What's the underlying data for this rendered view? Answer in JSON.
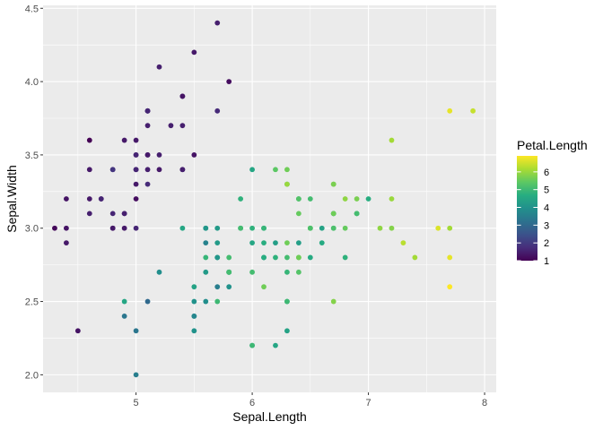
{
  "chart_data": {
    "type": "scatter",
    "xlabel": "Sepal.Length",
    "ylabel": "Sepal.Width",
    "xlim": [
      4.2,
      8.1
    ],
    "ylim": [
      1.88,
      4.52
    ],
    "x_ticks": [
      5,
      6,
      7,
      8
    ],
    "x_tick_labels": [
      "5",
      "6",
      "7",
      "8"
    ],
    "y_ticks": [
      2.0,
      2.5,
      3.0,
      3.5,
      4.0,
      4.5
    ],
    "y_tick_labels": [
      "2.0",
      "2.5",
      "3.0",
      "3.5",
      "4.0",
      "4.5"
    ],
    "grid": true,
    "panel_background": "#EBEBEB",
    "grid_color": "#FFFFFF",
    "color_scale": {
      "title": "Petal.Length",
      "palette": "viridis",
      "limits": [
        1.0,
        6.9
      ],
      "breaks": [
        1,
        2,
        3,
        4,
        5,
        6
      ],
      "break_labels": [
        "1",
        "2",
        "3",
        "4",
        "5",
        "6"
      ],
      "legend_position": "right"
    },
    "points": [
      [
        5.1,
        3.5,
        1.4
      ],
      [
        4.9,
        3.0,
        1.4
      ],
      [
        4.7,
        3.2,
        1.3
      ],
      [
        4.6,
        3.1,
        1.5
      ],
      [
        5.0,
        3.6,
        1.4
      ],
      [
        5.4,
        3.9,
        1.7
      ],
      [
        4.6,
        3.4,
        1.4
      ],
      [
        5.0,
        3.4,
        1.5
      ],
      [
        4.4,
        2.9,
        1.4
      ],
      [
        4.9,
        3.1,
        1.5
      ],
      [
        5.4,
        3.7,
        1.5
      ],
      [
        4.8,
        3.4,
        1.6
      ],
      [
        4.8,
        3.0,
        1.4
      ],
      [
        4.3,
        3.0,
        1.1
      ],
      [
        5.8,
        4.0,
        1.2
      ],
      [
        5.7,
        4.4,
        1.5
      ],
      [
        5.4,
        3.9,
        1.3
      ],
      [
        5.1,
        3.5,
        1.4
      ],
      [
        5.7,
        3.8,
        1.7
      ],
      [
        5.1,
        3.8,
        1.5
      ],
      [
        5.4,
        3.4,
        1.7
      ],
      [
        5.1,
        3.7,
        1.5
      ],
      [
        4.6,
        3.6,
        1.0
      ],
      [
        5.1,
        3.3,
        1.7
      ],
      [
        4.8,
        3.4,
        1.9
      ],
      [
        5.0,
        3.0,
        1.6
      ],
      [
        5.0,
        3.4,
        1.6
      ],
      [
        5.2,
        3.5,
        1.5
      ],
      [
        5.2,
        3.4,
        1.4
      ],
      [
        4.7,
        3.2,
        1.6
      ],
      [
        4.8,
        3.1,
        1.6
      ],
      [
        5.4,
        3.4,
        1.5
      ],
      [
        5.2,
        4.1,
        1.5
      ],
      [
        5.5,
        4.2,
        1.4
      ],
      [
        4.9,
        3.1,
        1.5
      ],
      [
        5.0,
        3.2,
        1.2
      ],
      [
        5.5,
        3.5,
        1.3
      ],
      [
        4.9,
        3.6,
        1.4
      ],
      [
        4.4,
        3.0,
        1.3
      ],
      [
        5.1,
        3.4,
        1.5
      ],
      [
        5.0,
        3.5,
        1.3
      ],
      [
        4.5,
        2.3,
        1.3
      ],
      [
        4.4,
        3.2,
        1.3
      ],
      [
        5.0,
        3.5,
        1.6
      ],
      [
        5.1,
        3.8,
        1.9
      ],
      [
        4.8,
        3.0,
        1.4
      ],
      [
        5.1,
        3.8,
        1.6
      ],
      [
        4.6,
        3.2,
        1.4
      ],
      [
        5.3,
        3.7,
        1.5
      ],
      [
        5.0,
        3.3,
        1.4
      ],
      [
        7.0,
        3.2,
        4.7
      ],
      [
        6.4,
        3.2,
        4.5
      ],
      [
        6.9,
        3.1,
        4.9
      ],
      [
        5.5,
        2.3,
        4.0
      ],
      [
        6.5,
        2.8,
        4.6
      ],
      [
        5.7,
        2.8,
        4.5
      ],
      [
        6.3,
        3.3,
        4.7
      ],
      [
        4.9,
        2.4,
        3.3
      ],
      [
        6.6,
        2.9,
        4.6
      ],
      [
        5.2,
        2.7,
        3.9
      ],
      [
        5.0,
        2.0,
        3.5
      ],
      [
        5.9,
        3.0,
        4.2
      ],
      [
        6.0,
        2.2,
        4.0
      ],
      [
        6.1,
        2.9,
        4.7
      ],
      [
        5.6,
        2.9,
        3.6
      ],
      [
        6.7,
        3.1,
        4.4
      ],
      [
        5.6,
        3.0,
        4.5
      ],
      [
        5.8,
        2.7,
        4.1
      ],
      [
        6.2,
        2.2,
        4.5
      ],
      [
        5.6,
        2.5,
        3.9
      ],
      [
        5.9,
        3.2,
        4.8
      ],
      [
        6.1,
        2.8,
        4.0
      ],
      [
        6.3,
        2.5,
        4.9
      ],
      [
        6.1,
        2.8,
        4.7
      ],
      [
        6.4,
        2.9,
        4.3
      ],
      [
        6.6,
        3.0,
        4.4
      ],
      [
        6.8,
        2.8,
        4.8
      ],
      [
        6.7,
        3.0,
        5.0
      ],
      [
        6.0,
        2.9,
        4.5
      ],
      [
        5.7,
        2.6,
        3.5
      ],
      [
        5.5,
        2.4,
        3.8
      ],
      [
        5.5,
        2.4,
        3.7
      ],
      [
        5.8,
        2.7,
        3.9
      ],
      [
        6.0,
        2.7,
        5.1
      ],
      [
        5.4,
        3.0,
        4.5
      ],
      [
        6.0,
        3.4,
        4.5
      ],
      [
        6.7,
        3.1,
        4.7
      ],
      [
        6.3,
        2.3,
        4.4
      ],
      [
        5.6,
        3.0,
        4.1
      ],
      [
        5.5,
        2.5,
        4.0
      ],
      [
        5.5,
        2.6,
        4.4
      ],
      [
        6.1,
        3.0,
        4.6
      ],
      [
        5.8,
        2.6,
        4.0
      ],
      [
        5.0,
        2.3,
        3.3
      ],
      [
        5.6,
        2.7,
        4.2
      ],
      [
        5.7,
        3.0,
        4.2
      ],
      [
        5.7,
        2.9,
        4.2
      ],
      [
        6.2,
        2.9,
        4.3
      ],
      [
        5.1,
        2.5,
        3.0
      ],
      [
        5.7,
        2.8,
        4.1
      ],
      [
        6.3,
        3.3,
        6.0
      ],
      [
        5.8,
        2.7,
        5.1
      ],
      [
        7.1,
        3.0,
        5.9
      ],
      [
        6.3,
        2.9,
        5.6
      ],
      [
        6.5,
        3.0,
        5.8
      ],
      [
        7.6,
        3.0,
        6.6
      ],
      [
        4.9,
        2.5,
        4.5
      ],
      [
        7.3,
        2.9,
        6.3
      ],
      [
        6.7,
        2.5,
        5.8
      ],
      [
        7.2,
        3.6,
        6.1
      ],
      [
        6.5,
        3.2,
        5.1
      ],
      [
        6.4,
        2.7,
        5.3
      ],
      [
        6.8,
        3.0,
        5.5
      ],
      [
        5.7,
        2.5,
        5.0
      ],
      [
        5.8,
        2.8,
        5.1
      ],
      [
        6.4,
        3.2,
        5.3
      ],
      [
        6.5,
        3.0,
        5.5
      ],
      [
        7.7,
        3.8,
        6.7
      ],
      [
        7.7,
        2.6,
        6.9
      ],
      [
        6.0,
        2.2,
        5.0
      ],
      [
        6.9,
        3.2,
        5.7
      ],
      [
        5.6,
        2.8,
        4.9
      ],
      [
        7.7,
        2.8,
        6.7
      ],
      [
        6.3,
        2.7,
        4.9
      ],
      [
        6.7,
        3.3,
        5.7
      ],
      [
        7.2,
        3.2,
        6.0
      ],
      [
        6.2,
        2.8,
        4.8
      ],
      [
        6.1,
        3.0,
        4.9
      ],
      [
        6.4,
        2.8,
        5.6
      ],
      [
        7.2,
        3.0,
        5.8
      ],
      [
        7.4,
        2.8,
        6.1
      ],
      [
        7.9,
        3.8,
        6.4
      ],
      [
        6.4,
        2.8,
        5.6
      ],
      [
        6.3,
        2.8,
        5.1
      ],
      [
        6.1,
        2.6,
        5.6
      ],
      [
        7.7,
        3.0,
        6.1
      ],
      [
        6.3,
        3.4,
        5.6
      ],
      [
        6.4,
        3.1,
        5.5
      ],
      [
        6.0,
        3.0,
        4.8
      ],
      [
        6.9,
        3.1,
        5.4
      ],
      [
        6.7,
        3.1,
        5.6
      ],
      [
        6.9,
        3.1,
        5.1
      ],
      [
        5.8,
        2.7,
        5.1
      ],
      [
        6.8,
        3.2,
        5.9
      ],
      [
        6.7,
        3.3,
        5.7
      ],
      [
        6.7,
        3.0,
        5.2
      ],
      [
        6.3,
        2.5,
        5.0
      ],
      [
        6.5,
        3.0,
        5.2
      ],
      [
        6.2,
        3.4,
        5.4
      ],
      [
        5.9,
        3.0,
        5.1
      ]
    ]
  }
}
